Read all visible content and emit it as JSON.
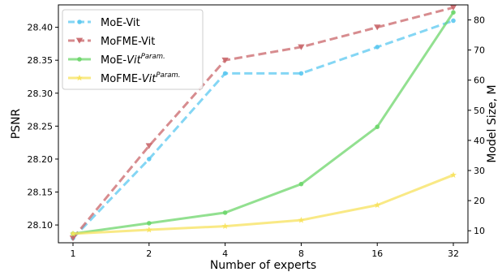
{
  "chart_data": {
    "type": "line",
    "xlabel": "Number of experts",
    "ylabel": "PSNR",
    "y2label": "Model Size, M",
    "categories": [
      "1",
      "2",
      "4",
      "8",
      "16",
      "32"
    ],
    "ylim": [
      28.073,
      28.434
    ],
    "y_ticks": [
      28.1,
      28.15,
      28.2,
      28.25,
      28.3,
      28.35,
      28.4
    ],
    "y_tick_labels": [
      "28.10",
      "28.15",
      "28.20",
      "28.25",
      "28.30",
      "28.35",
      "28.40"
    ],
    "y2lim": [
      6,
      85
    ],
    "y2_ticks": [
      10,
      20,
      30,
      40,
      50,
      60,
      70,
      80
    ],
    "y2_tick_labels": [
      "10",
      "20",
      "30",
      "40",
      "50",
      "60",
      "70",
      "80"
    ],
    "grid": false,
    "legend_position": "top-left",
    "series": [
      {
        "name": "MoE-Vit",
        "name_sup": "",
        "axis": "left",
        "marker": "circle",
        "dash": true,
        "color": "#5bc8f0",
        "values": [
          28.08,
          28.2,
          28.33,
          28.33,
          28.37,
          28.41
        ]
      },
      {
        "name": "MoFME-Vit",
        "name_sup": "",
        "axis": "left",
        "marker": "triangle-down",
        "dash": true,
        "color": "#c9666a",
        "values": [
          28.08,
          28.22,
          28.35,
          28.37,
          28.4,
          28.43
        ]
      },
      {
        "name": "MoE-Vit",
        "name_sup": "Param.",
        "axis": "right",
        "marker": "circle",
        "dash": false,
        "color": "#6dd66b",
        "values": [
          9,
          12.5,
          16,
          25.5,
          44.5,
          82.5
        ]
      },
      {
        "name": "MoFME-Vit",
        "name_sup": "Param.",
        "axis": "right",
        "marker": "star",
        "dash": false,
        "color": "#f7e25c",
        "values": [
          9,
          10.3,
          11.5,
          13.5,
          18.5,
          28.5
        ]
      }
    ]
  }
}
